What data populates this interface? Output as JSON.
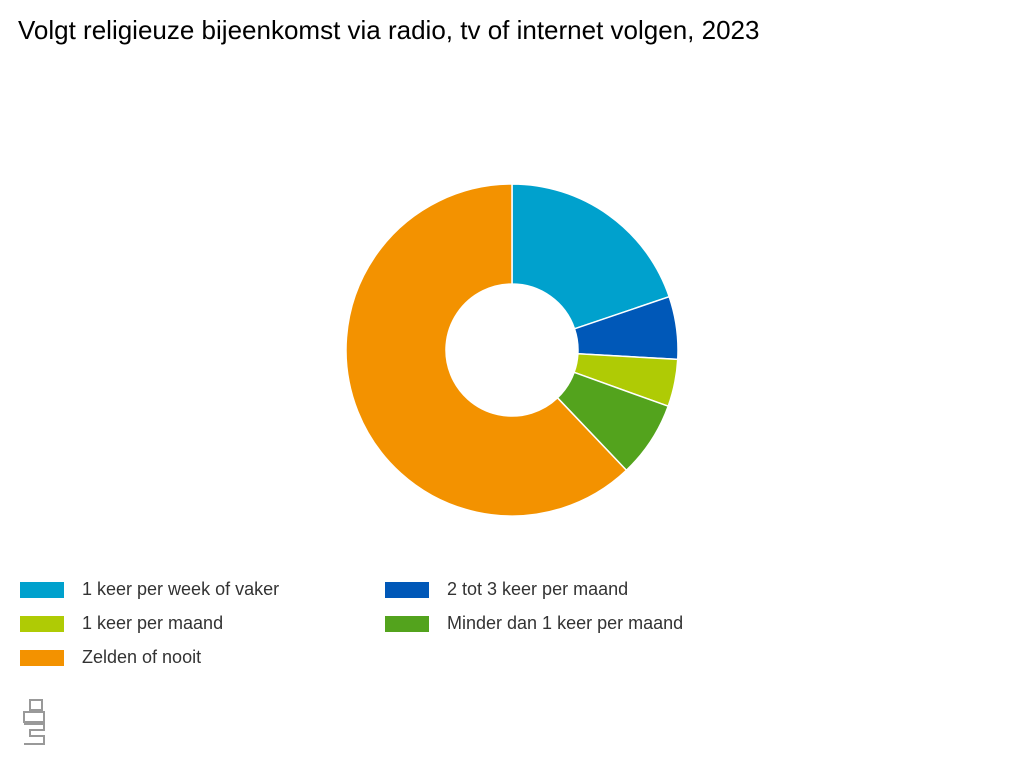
{
  "chart_data": {
    "type": "donut",
    "title": "Volgt religieuze bijeenkomst via radio, tv of internet volgen, 2023",
    "categories": [
      "1 keer per week of vaker",
      "2 tot 3 keer per maand",
      "1 keer per maand",
      "Minder dan 1 keer per maand",
      "Zelden of nooit"
    ],
    "values": [
      19.8,
      6.1,
      4.6,
      7.4,
      62.1
    ],
    "colors": [
      "#00a1cd",
      "#0058b8",
      "#afcb05",
      "#53a31d",
      "#f39200"
    ]
  }
}
